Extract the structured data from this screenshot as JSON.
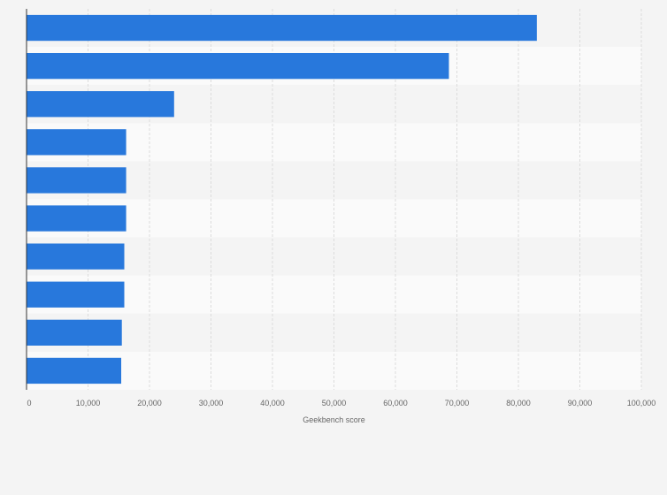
{
  "chart_data": {
    "type": "bar",
    "orientation": "horizontal",
    "categories": [
      "",
      "",
      "",
      "",
      "",
      "",
      "",
      "",
      "",
      ""
    ],
    "values": [
      83000,
      68700,
      24000,
      16200,
      16200,
      16200,
      15900,
      15900,
      15500,
      15400
    ],
    "xlabel": "Geekbench score",
    "xlim": [
      0,
      100000
    ],
    "xticks": [
      "0",
      "10,000",
      "20,000",
      "30,000",
      "40,000",
      "50,000",
      "60,000",
      "70,000",
      "80,000",
      "90,000",
      "100,000"
    ],
    "grid": true,
    "bar_color": "#2878dc",
    "band_colors": [
      "#f4f4f4",
      "#fafafa"
    ]
  }
}
